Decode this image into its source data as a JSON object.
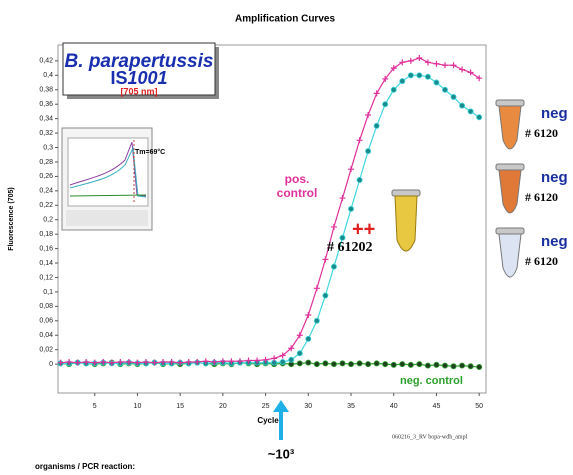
{
  "chart_data": {
    "type": "line",
    "title": "Amplification Curves",
    "xlabel": "Cycle",
    "ylabel": "Fluorescence (705)",
    "x": [
      1,
      2,
      3,
      4,
      5,
      6,
      7,
      8,
      9,
      10,
      11,
      12,
      13,
      14,
      15,
      16,
      17,
      18,
      19,
      20,
      21,
      22,
      23,
      24,
      25,
      26,
      27,
      28,
      29,
      30,
      31,
      32,
      33,
      34,
      35,
      36,
      37,
      38,
      39,
      40,
      41,
      42,
      43,
      44,
      45,
      46,
      47,
      48,
      49,
      50
    ],
    "series": [
      {
        "name": "pos. control",
        "color": "#e0309a",
        "marker": "plus",
        "values": [
          0.002,
          0.003,
          0.002,
          0.003,
          0.002,
          0.003,
          0.002,
          0.003,
          0.003,
          0.002,
          0.003,
          0.002,
          0.003,
          0.003,
          0.002,
          0.003,
          0.003,
          0.004,
          0.003,
          0.004,
          0.004,
          0.004,
          0.005,
          0.005,
          0.006,
          0.008,
          0.012,
          0.022,
          0.04,
          0.068,
          0.105,
          0.145,
          0.19,
          0.23,
          0.27,
          0.31,
          0.345,
          0.375,
          0.395,
          0.41,
          0.418,
          0.42,
          0.424,
          0.418,
          0.416,
          0.414,
          0.414,
          0.408,
          0.404,
          0.396
        ]
      },
      {
        "name": "# 61202",
        "color": "#3fd6e0",
        "marker_color": "#1a8a8a",
        "marker": "circle",
        "values": [
          0.001,
          0.001,
          0.002,
          0.001,
          0.001,
          0.002,
          0.001,
          0.001,
          0.002,
          0.001,
          0.001,
          0.002,
          0.001,
          0.001,
          0.002,
          0.001,
          0.002,
          0.001,
          0.002,
          0.002,
          0.001,
          0.002,
          0.002,
          0.002,
          0.002,
          0.002,
          0.003,
          0.006,
          0.015,
          0.035,
          0.06,
          0.095,
          0.135,
          0.175,
          0.215,
          0.255,
          0.295,
          0.33,
          0.36,
          0.38,
          0.392,
          0.4,
          0.4,
          0.398,
          0.39,
          0.38,
          0.37,
          0.358,
          0.35,
          0.342
        ]
      },
      {
        "name": "neg. control",
        "color": "#2ca02c",
        "marker_color": "#1f3f1f",
        "marker": "circle",
        "values": [
          0.001,
          0.0,
          0.002,
          0.001,
          0.0,
          0.001,
          0.002,
          0.0,
          0.001,
          0.0,
          0.001,
          0.002,
          0.0,
          0.001,
          0.0,
          0.001,
          0.002,
          0.001,
          0.0,
          0.001,
          0.0,
          0.002,
          0.001,
          0.0,
          0.001,
          0.0,
          0.001,
          0.0,
          0.001,
          0.002,
          0.0,
          0.001,
          0.0,
          0.001,
          0.0,
          0.001,
          0.0,
          0.001,
          0.0,
          -0.001,
          0.0,
          -0.001,
          0.0,
          -0.002,
          -0.001,
          -0.002,
          -0.003,
          -0.002,
          -0.003,
          -0.004
        ]
      }
    ],
    "xlim": [
      0.7,
      50.8
    ],
    "ylim": [
      -0.04,
      0.442
    ],
    "xticks": [
      5,
      10,
      15,
      20,
      25,
      30,
      35,
      40,
      45,
      50
    ],
    "yticks": [
      0,
      {
        "value": 0.02,
        "label": "0,02"
      },
      {
        "value": 0.04,
        "label": "0,04"
      },
      {
        "value": 0.06,
        "label": "0,06"
      },
      {
        "value": 0.08,
        "label": "0,08"
      },
      {
        "value": 0.1,
        "label": "0,1"
      },
      {
        "value": 0.12,
        "label": "0,12"
      },
      {
        "value": 0.14,
        "label": "0,14"
      },
      {
        "value": 0.16,
        "label": "0,16"
      },
      {
        "value": 0.18,
        "label": "0,18"
      },
      {
        "value": 0.2,
        "label": "0,2"
      },
      {
        "value": 0.22,
        "label": "0,22"
      },
      {
        "value": 0.24,
        "label": "0,24"
      },
      {
        "value": 0.26,
        "label": "0,26"
      },
      {
        "value": 0.28,
        "label": "0,28"
      },
      {
        "value": 0.3,
        "label": "0,3"
      },
      {
        "value": 0.32,
        "label": "0,32"
      },
      {
        "value": 0.34,
        "label": "0,34"
      },
      {
        "value": 0.36,
        "label": "0,36"
      },
      {
        "value": 0.38,
        "label": "0,38"
      },
      {
        "value": 0.4,
        "label": "0,4"
      },
      {
        "value": 0.42,
        "label": "0,42"
      }
    ],
    "box_title": "B. parapertussis",
    "box_is": "IS",
    "box_is_num": "1001",
    "box_nm": "[705 nm]",
    "inset_tm": "Tm=69°C",
    "plus_signs": "++",
    "tubes": [
      {
        "label": "neg",
        "id": "# 6120"
      },
      {
        "label": "neg",
        "id": "# 6120"
      },
      {
        "label": "neg",
        "id": "# 6120"
      }
    ],
    "arrow_label": "~10³",
    "footer": "organisms / PCR reaction:",
    "file_label": "060216_3_RV bopa-wdh_ampl"
  }
}
